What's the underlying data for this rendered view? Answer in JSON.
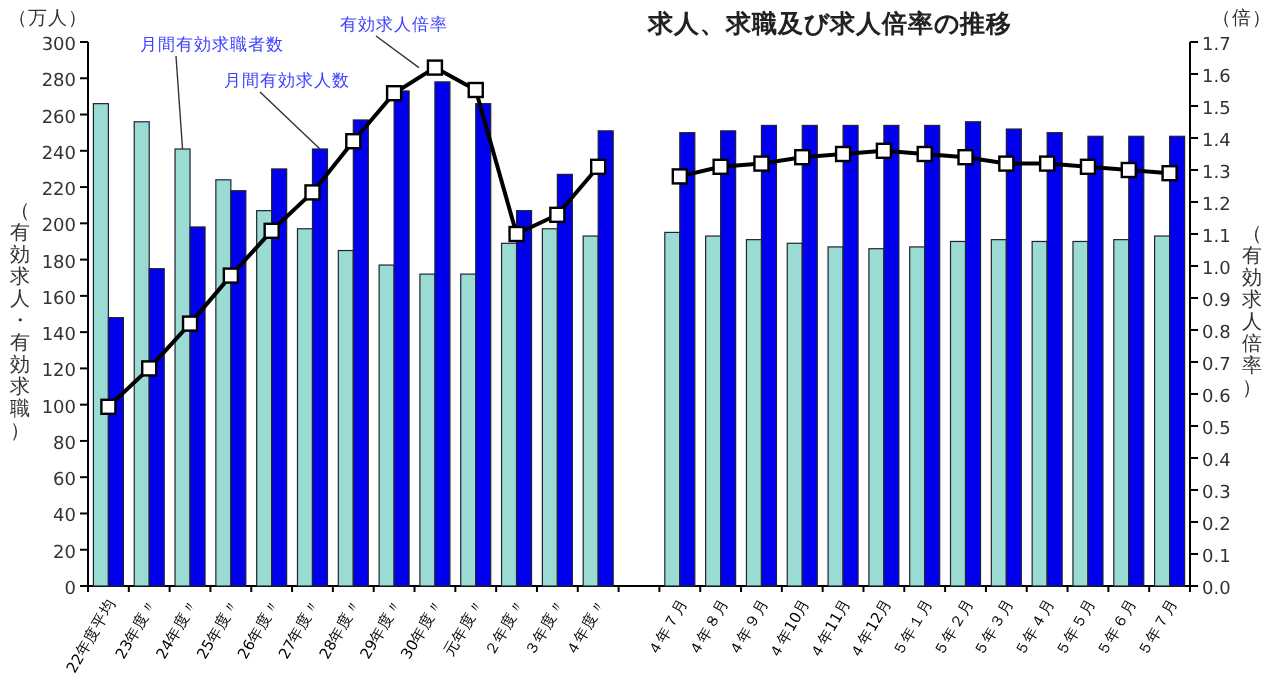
{
  "chart_data": {
    "type": "bar",
    "title": "求人、求職及び求人倍率の推移",
    "ylabel": "（有効求人・有効求職）",
    "y2label": "（有効求人倍率）",
    "annotations": [
      "（万人）",
      "（倍）"
    ],
    "categories": [
      "22年度平均",
      "23年度〃",
      "24年度〃",
      "25年度〃",
      "26年度〃",
      "27年度〃",
      "28年度〃",
      "29年度〃",
      "30年度〃",
      "元年度〃",
      "２年度〃",
      "３年度〃",
      "４年度〃",
      null,
      "４年７月",
      "４年８月",
      "４年９月",
      "４年10月",
      "４年11月",
      "４年12月",
      "５年１月",
      "５年２月",
      "５年３月",
      "５年４月",
      "５年５月",
      "５年６月",
      "５年７月"
    ],
    "series": [
      {
        "name": "月間有効求職者数",
        "color": "#9adcd4",
        "values": [
          266,
          256,
          241,
          224,
          207,
          197,
          185,
          177,
          172,
          172,
          189,
          197,
          193,
          null,
          195,
          193,
          191,
          189,
          187,
          186,
          187,
          190,
          191,
          190,
          190,
          191,
          193
        ]
      },
      {
        "name": "月間有効求人数",
        "color": "#0000ee",
        "values": [
          148,
          175,
          198,
          218,
          230,
          241,
          257,
          273,
          278,
          266,
          207,
          227,
          251,
          null,
          250,
          251,
          254,
          254,
          254,
          254,
          254,
          256,
          252,
          250,
          248,
          248,
          248
        ]
      },
      {
        "name": "有効求人倍率",
        "type": "line",
        "axis": "y2",
        "color": "#000000",
        "marker": "square",
        "values": [
          0.56,
          0.68,
          0.82,
          0.97,
          1.11,
          1.23,
          1.39,
          1.54,
          1.62,
          1.55,
          1.1,
          1.16,
          1.31,
          null,
          1.28,
          1.31,
          1.32,
          1.34,
          1.35,
          1.36,
          1.35,
          1.34,
          1.32,
          1.32,
          1.31,
          1.3,
          1.29
        ]
      }
    ],
    "ylim": [
      0,
      300
    ],
    "yticks": [
      0,
      20,
      40,
      60,
      80,
      100,
      120,
      140,
      160,
      180,
      200,
      220,
      240,
      260,
      280,
      300
    ],
    "y2lim": [
      0,
      1.7
    ],
    "y2ticks": [
      {
        "value": 0,
        "label": "0.0"
      },
      {
        "value": 0.1,
        "label": "0.1"
      },
      {
        "value": 0.2,
        "label": "0.2"
      },
      {
        "value": 0.3,
        "label": "0.3"
      },
      {
        "value": 0.4,
        "label": "0.4"
      },
      {
        "value": 0.5,
        "label": "0.5"
      },
      {
        "value": 0.6,
        "label": "0.6"
      },
      {
        "value": 0.7,
        "label": "0.7"
      },
      {
        "value": 0.8,
        "label": "0.8"
      },
      {
        "value": 0.9,
        "label": "0.9"
      },
      {
        "value": 1,
        "label": "1.0"
      },
      {
        "value": 1.1,
        "label": "1.1"
      },
      {
        "value": 1.2,
        "label": "1.2"
      },
      {
        "value": 1.3,
        "label": "1.3"
      },
      {
        "value": 1.4,
        "label": "1.4"
      },
      {
        "value": 1.5,
        "label": "1.5"
      },
      {
        "value": 1.6,
        "label": "1.6"
      },
      {
        "value": 1.7,
        "label": "1.7"
      }
    ],
    "grid": false
  }
}
